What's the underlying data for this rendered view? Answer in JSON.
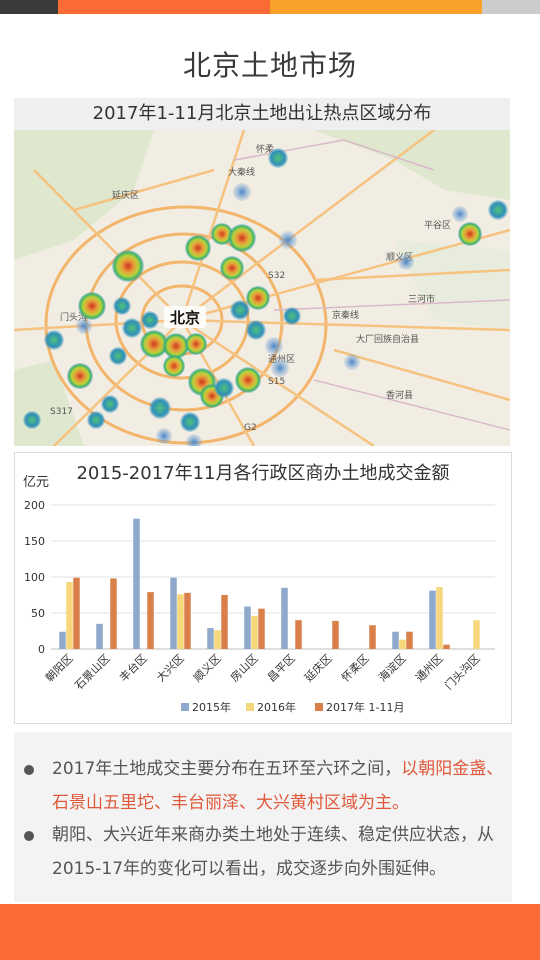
{
  "header": {
    "title": "北京土地市场",
    "bar_colors": [
      "#3b3b3b",
      "#fb6a34",
      "#f8a22a",
      "#cccccc"
    ]
  },
  "map": {
    "title": "2017年1-11月北京土地出让热点区域分布",
    "center_label": "北京",
    "place_labels": [
      "大秦线",
      "怀柔",
      "延庆区",
      "平谷区",
      "顺义区",
      "三河市",
      "京秦线",
      "大厂回族自治县",
      "香河县",
      "门头沟",
      "通州区",
      "S32",
      "S15",
      "G2",
      "S317"
    ]
  },
  "chart_data": {
    "type": "bar",
    "title": "2015-2017年11月各行政区商办土地成交金额",
    "ylabel": "亿元",
    "ylim": [
      0,
      200
    ],
    "yticks": [
      0,
      50,
      100,
      150,
      200
    ],
    "categories": [
      "朝阳区",
      "石景山区",
      "丰台区",
      "大兴区",
      "顺义区",
      "房山区",
      "昌平区",
      "延庆区",
      "怀柔区",
      "海淀区",
      "通州区",
      "门头沟区"
    ],
    "series": [
      {
        "name": "2015年",
        "color": "#8fa9cc",
        "values": [
          24,
          35,
          181,
          99,
          29,
          59,
          85,
          0,
          0,
          24,
          81,
          0
        ]
      },
      {
        "name": "2016年",
        "color": "#f6d77c",
        "values": [
          93,
          0,
          0,
          76,
          26,
          46,
          0,
          0,
          0,
          13,
          86,
          40
        ]
      },
      {
        "name": "2017年 1-11月",
        "color": "#d9804a",
        "values": [
          99,
          98,
          79,
          78,
          75,
          56,
          40,
          39,
          33,
          24,
          6,
          0
        ]
      }
    ],
    "legend": "bottom",
    "grid": true
  },
  "notes": {
    "b1_pre": "2017年土地成交主要分布在五环至六环之间，",
    "b1_hl": "以朝阳金盏、石景山五里坨、丰台丽泽、大兴黄村区域为主。",
    "b2": "朝阳、大兴近年来商办类土地处于连续、稳定供应状态，从2015-17年的变化可以看出，成交逐步向外围延伸。"
  }
}
